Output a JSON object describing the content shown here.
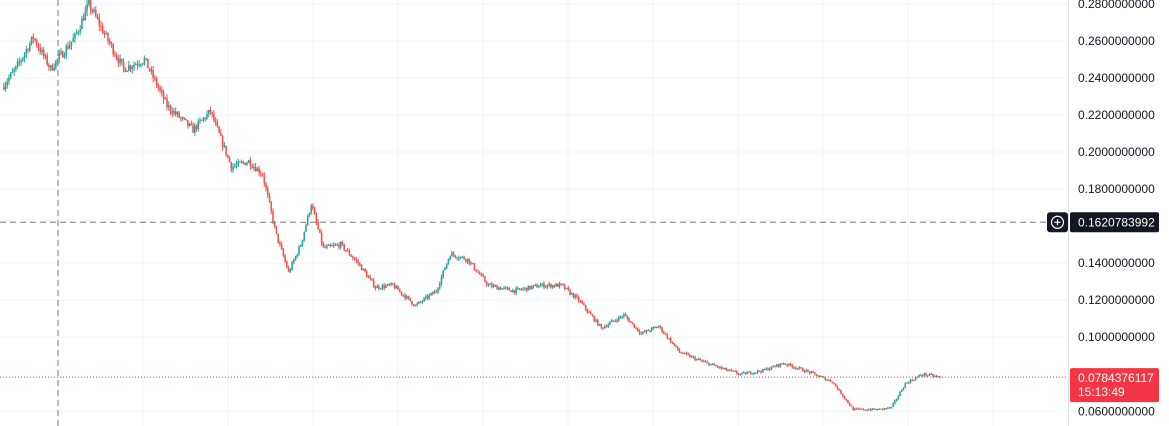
{
  "chart_data": {
    "type": "candlestick",
    "title": "",
    "ylim": [
      0.055,
      0.285
    ],
    "grid": true,
    "colors": {
      "up": "#26a69a",
      "down": "#ef5350",
      "crosshair_tag": "#131722",
      "last_price_tag": "#f23645"
    },
    "y_ticks": [
      {
        "value": 0.28,
        "label": "0.2800000000"
      },
      {
        "value": 0.26,
        "label": "0.2600000000"
      },
      {
        "value": 0.24,
        "label": "0.2400000000"
      },
      {
        "value": 0.22,
        "label": "0.2200000000"
      },
      {
        "value": 0.2,
        "label": "0.2000000000"
      },
      {
        "value": 0.18,
        "label": "0.1800000000"
      },
      {
        "value": 0.14,
        "label": "0.1400000000"
      },
      {
        "value": 0.12,
        "label": "0.1200000000"
      },
      {
        "value": 0.1,
        "label": "0.1000000000"
      },
      {
        "value": 0.06,
        "label": "0.0600000000"
      }
    ],
    "crosshair": {
      "price": 0.1620783992,
      "label": "0.1620783992",
      "icon": "plus-circle-icon"
    },
    "last_price": {
      "price": 0.0784376117,
      "label": "0.0784376117",
      "countdown": "15:13:49"
    },
    "trend_anchors": [
      [
        0,
        0.235
      ],
      [
        8,
        0.245
      ],
      [
        18,
        0.262
      ],
      [
        28,
        0.245
      ],
      [
        42,
        0.262
      ],
      [
        50,
        0.28
      ],
      [
        60,
        0.262
      ],
      [
        70,
        0.245
      ],
      [
        82,
        0.25
      ],
      [
        95,
        0.225
      ],
      [
        110,
        0.212
      ],
      [
        120,
        0.222
      ],
      [
        132,
        0.192
      ],
      [
        142,
        0.195
      ],
      [
        150,
        0.188
      ],
      [
        158,
        0.155
      ],
      [
        165,
        0.135
      ],
      [
        172,
        0.15
      ],
      [
        178,
        0.172
      ],
      [
        185,
        0.148
      ],
      [
        195,
        0.15
      ],
      [
        205,
        0.14
      ],
      [
        215,
        0.127
      ],
      [
        225,
        0.128
      ],
      [
        238,
        0.117
      ],
      [
        250,
        0.125
      ],
      [
        258,
        0.145
      ],
      [
        268,
        0.142
      ],
      [
        280,
        0.128
      ],
      [
        295,
        0.125
      ],
      [
        310,
        0.128
      ],
      [
        322,
        0.128
      ],
      [
        332,
        0.12
      ],
      [
        345,
        0.105
      ],
      [
        358,
        0.112
      ],
      [
        368,
        0.102
      ],
      [
        378,
        0.106
      ],
      [
        390,
        0.092
      ],
      [
        400,
        0.088
      ],
      [
        415,
        0.083
      ],
      [
        425,
        0.08
      ],
      [
        438,
        0.082
      ],
      [
        450,
        0.086
      ],
      [
        465,
        0.081
      ],
      [
        478,
        0.076
      ],
      [
        490,
        0.061
      ],
      [
        505,
        0.061
      ],
      [
        512,
        0.062
      ],
      [
        520,
        0.075
      ],
      [
        530,
        0.08
      ],
      [
        540,
        0.0785
      ]
    ],
    "candle_count": 540,
    "seed": 7
  }
}
